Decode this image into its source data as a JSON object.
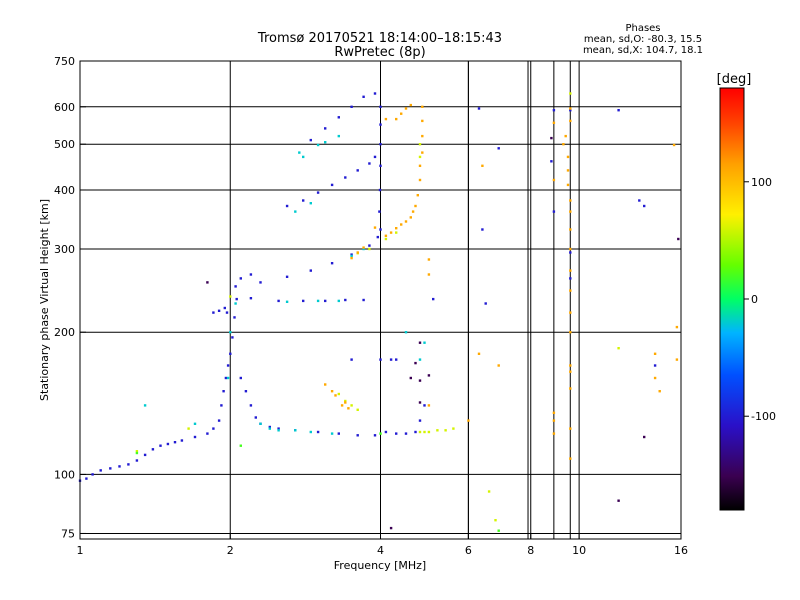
{
  "chart_data": {
    "type": "scatter",
    "title": "Tromsø 20170521 18:14:00–18:15:43",
    "subtitle": "RwPretec (8p)",
    "xlabel": "Frequency [MHz]",
    "ylabel": "Stationary phase Virtual Height [km]",
    "x_scale": "log",
    "y_scale": "log",
    "xlim": [
      1,
      16
    ],
    "ylim": [
      73,
      750
    ],
    "x_ticks": [
      1,
      2,
      4,
      6,
      8,
      10,
      16
    ],
    "x_tick_labels": [
      "1",
      "2",
      "4",
      "6",
      "8",
      "10",
      "16"
    ],
    "y_ticks": [
      75,
      100,
      200,
      300,
      400,
      500,
      600,
      750
    ],
    "y_tick_labels": [
      "75",
      "100",
      "200",
      "300",
      "400",
      "500",
      "600",
      "750"
    ],
    "extra_grid_x": [
      6.0,
      7.9,
      8.9,
      9.6
    ],
    "grid": true,
    "stats": {
      "header": "Phases",
      "line_o": "mean, sd,O: -80.3, 15.5",
      "line_x": "mean, sd,X: 104.7, 18.1"
    },
    "colorbar": {
      "label": "[deg]",
      "range": [
        -180,
        180
      ],
      "ticks": [
        100,
        0,
        -100
      ],
      "tick_labels": [
        "100",
        "0",
        "-100"
      ]
    },
    "series": [
      {
        "phase": -100,
        "points": [
          [
            1.0,
            97
          ],
          [
            1.03,
            98
          ],
          [
            1.06,
            100
          ],
          [
            1.1,
            102
          ],
          [
            1.15,
            103
          ],
          [
            1.2,
            104
          ],
          [
            1.25,
            105
          ],
          [
            1.3,
            107
          ],
          [
            1.35,
            110
          ],
          [
            1.4,
            113
          ],
          [
            1.45,
            115
          ],
          [
            1.5,
            116
          ],
          [
            1.55,
            117
          ],
          [
            1.6,
            118
          ],
          [
            1.7,
            120
          ],
          [
            1.8,
            122
          ],
          [
            1.85,
            125
          ],
          [
            1.9,
            130
          ],
          [
            1.92,
            140
          ],
          [
            1.94,
            150
          ],
          [
            1.96,
            160
          ],
          [
            1.98,
            170
          ],
          [
            2.0,
            180
          ],
          [
            2.02,
            195
          ],
          [
            2.04,
            215
          ],
          [
            2.06,
            235
          ],
          [
            1.95,
            225
          ],
          [
            1.97,
            220
          ],
          [
            2.05,
            250
          ],
          [
            2.1,
            160
          ],
          [
            2.15,
            150
          ],
          [
            2.2,
            140
          ],
          [
            2.25,
            132
          ],
          [
            2.3,
            128
          ],
          [
            2.4,
            126
          ],
          [
            2.5,
            125
          ],
          [
            2.7,
            124
          ],
          [
            3.0,
            123
          ],
          [
            3.3,
            122
          ],
          [
            3.6,
            121
          ],
          [
            3.9,
            121
          ],
          [
            4.1,
            123
          ],
          [
            4.3,
            122
          ],
          [
            4.5,
            122
          ],
          [
            4.7,
            123
          ],
          [
            2.2,
            236
          ],
          [
            2.5,
            233
          ],
          [
            2.8,
            233
          ],
          [
            3.1,
            233
          ],
          [
            3.4,
            234
          ],
          [
            3.7,
            234
          ],
          [
            2.3,
            255
          ],
          [
            2.6,
            262
          ],
          [
            2.9,
            270
          ],
          [
            3.2,
            280
          ],
          [
            3.5,
            292
          ],
          [
            3.8,
            305
          ],
          [
            3.95,
            318
          ],
          [
            4.0,
            330
          ],
          [
            3.98,
            360
          ],
          [
            3.99,
            400
          ],
          [
            4.0,
            450
          ],
          [
            4.0,
            500
          ],
          [
            4.0,
            550
          ],
          [
            4.0,
            600
          ],
          [
            2.6,
            370
          ],
          [
            2.8,
            380
          ],
          [
            3.0,
            395
          ],
          [
            3.2,
            410
          ],
          [
            3.4,
            425
          ],
          [
            3.6,
            440
          ],
          [
            3.8,
            455
          ],
          [
            3.9,
            470
          ],
          [
            2.9,
            510
          ],
          [
            3.1,
            540
          ],
          [
            3.3,
            570
          ],
          [
            3.5,
            600
          ],
          [
            3.7,
            630
          ],
          [
            3.9,
            640
          ],
          [
            3.5,
            175
          ],
          [
            4.0,
            175
          ],
          [
            4.3,
            175
          ],
          [
            4.2,
            175
          ],
          [
            2.1,
            260
          ],
          [
            2.2,
            265
          ],
          [
            1.85,
            220
          ],
          [
            1.9,
            222
          ],
          [
            6.3,
            595
          ],
          [
            6.4,
            330
          ],
          [
            6.5,
            230
          ],
          [
            6.9,
            490
          ],
          [
            8.9,
            590
          ],
          [
            9.6,
            590
          ],
          [
            8.8,
            460
          ],
          [
            9.6,
            295
          ],
          [
            9.6,
            260
          ],
          [
            8.9,
            360
          ],
          [
            4.8,
            130
          ],
          [
            4.9,
            140
          ],
          [
            5.1,
            235
          ],
          [
            12.0,
            590
          ],
          [
            13.2,
            380
          ],
          [
            13.5,
            370
          ],
          [
            14.2,
            170
          ]
        ]
      },
      {
        "phase": -20,
        "points": [
          [
            2.4,
            125
          ],
          [
            2.5,
            124
          ],
          [
            2.7,
            124
          ],
          [
            2.9,
            123
          ],
          [
            3.2,
            122
          ],
          [
            2.3,
            128
          ],
          [
            2.6,
            232
          ],
          [
            3.0,
            233
          ],
          [
            3.3,
            233
          ],
          [
            3.1,
            505
          ],
          [
            3.3,
            520
          ],
          [
            3.0,
            498
          ],
          [
            2.8,
            470
          ],
          [
            2.7,
            360
          ],
          [
            2.9,
            375
          ],
          [
            2.75,
            480
          ],
          [
            3.5,
            290
          ],
          [
            3.7,
            300
          ],
          [
            1.35,
            140
          ],
          [
            1.7,
            128
          ],
          [
            2.05,
            230
          ],
          [
            2.0,
            200
          ],
          [
            1.98,
            160
          ],
          [
            4.5,
            200
          ],
          [
            4.8,
            175
          ],
          [
            4.9,
            190
          ]
        ]
      },
      {
        "phase": 60,
        "points": [
          [
            1.3,
            112
          ],
          [
            1.65,
            125
          ],
          [
            2.0,
            238
          ],
          [
            4.8,
            123
          ],
          [
            5.0,
            123
          ],
          [
            5.2,
            124
          ],
          [
            5.4,
            124
          ],
          [
            5.6,
            125
          ],
          [
            3.3,
            148
          ],
          [
            3.4,
            143
          ],
          [
            3.5,
            140
          ],
          [
            3.6,
            137
          ],
          [
            4.8,
            500
          ],
          [
            4.8,
            470
          ],
          [
            3.6,
            294
          ],
          [
            3.8,
            300
          ],
          [
            4.1,
            315
          ],
          [
            4.3,
            325
          ],
          [
            6.6,
            92
          ],
          [
            6.8,
            80
          ],
          [
            4.9,
            123
          ],
          [
            9.6,
            640
          ],
          [
            12.0,
            185
          ]
        ]
      },
      {
        "phase": 110,
        "points": [
          [
            3.1,
            155
          ],
          [
            3.2,
            150
          ],
          [
            3.25,
            147
          ],
          [
            3.35,
            140
          ],
          [
            3.4,
            142
          ],
          [
            3.45,
            138
          ],
          [
            3.9,
            333
          ],
          [
            3.7,
            302
          ],
          [
            3.6,
            295
          ],
          [
            3.5,
            287
          ],
          [
            4.1,
            320
          ],
          [
            4.2,
            325
          ],
          [
            4.3,
            332
          ],
          [
            4.4,
            338
          ],
          [
            4.5,
            343
          ],
          [
            4.6,
            350
          ],
          [
            4.65,
            360
          ],
          [
            4.7,
            370
          ],
          [
            4.75,
            390
          ],
          [
            4.8,
            420
          ],
          [
            4.8,
            450
          ],
          [
            4.85,
            480
          ],
          [
            4.85,
            520
          ],
          [
            4.85,
            560
          ],
          [
            4.85,
            600
          ],
          [
            4.3,
            565
          ],
          [
            4.4,
            580
          ],
          [
            4.5,
            595
          ],
          [
            4.6,
            605
          ],
          [
            4.1,
            565
          ],
          [
            5.0,
            140
          ],
          [
            5.0,
            285
          ],
          [
            5.0,
            265
          ],
          [
            6.0,
            130
          ],
          [
            6.3,
            180
          ],
          [
            6.4,
            450
          ],
          [
            6.9,
            170
          ],
          [
            9.3,
            500
          ],
          [
            9.4,
            520
          ],
          [
            9.5,
            470
          ],
          [
            9.5,
            440
          ],
          [
            9.5,
            410
          ],
          [
            9.6,
            380
          ],
          [
            9.6,
            360
          ],
          [
            9.6,
            330
          ],
          [
            9.6,
            300
          ],
          [
            9.6,
            270
          ],
          [
            9.6,
            245
          ],
          [
            9.6,
            220
          ],
          [
            9.6,
            200
          ],
          [
            9.6,
            170
          ],
          [
            9.6,
            165
          ],
          [
            9.6,
            152
          ],
          [
            9.6,
            125
          ],
          [
            9.6,
            108
          ],
          [
            8.9,
            420
          ],
          [
            8.9,
            130
          ],
          [
            8.9,
            122
          ],
          [
            8.9,
            135
          ],
          [
            8.9,
            555
          ],
          [
            9.6,
            560
          ],
          [
            9.6,
            595
          ],
          [
            14.2,
            180
          ],
          [
            14.2,
            160
          ],
          [
            14.5,
            150
          ],
          [
            15.5,
            498
          ],
          [
            15.7,
            205
          ],
          [
            15.7,
            175
          ]
        ]
      },
      {
        "phase": 20,
        "points": [
          [
            2.1,
            115
          ],
          [
            1.3,
            111
          ],
          [
            6.9,
            76
          ],
          [
            4.0,
            122
          ]
        ]
      },
      {
        "phase": -150,
        "points": [
          [
            1.8,
            255
          ],
          [
            4.2,
            77
          ],
          [
            12.0,
            88
          ],
          [
            4.8,
            190
          ],
          [
            4.6,
            160
          ],
          [
            4.7,
            172
          ],
          [
            4.8,
            158
          ],
          [
            5.0,
            162
          ],
          [
            4.8,
            142
          ],
          [
            8.8,
            515
          ],
          [
            13.5,
            120
          ],
          [
            15.8,
            315
          ]
        ]
      }
    ]
  }
}
